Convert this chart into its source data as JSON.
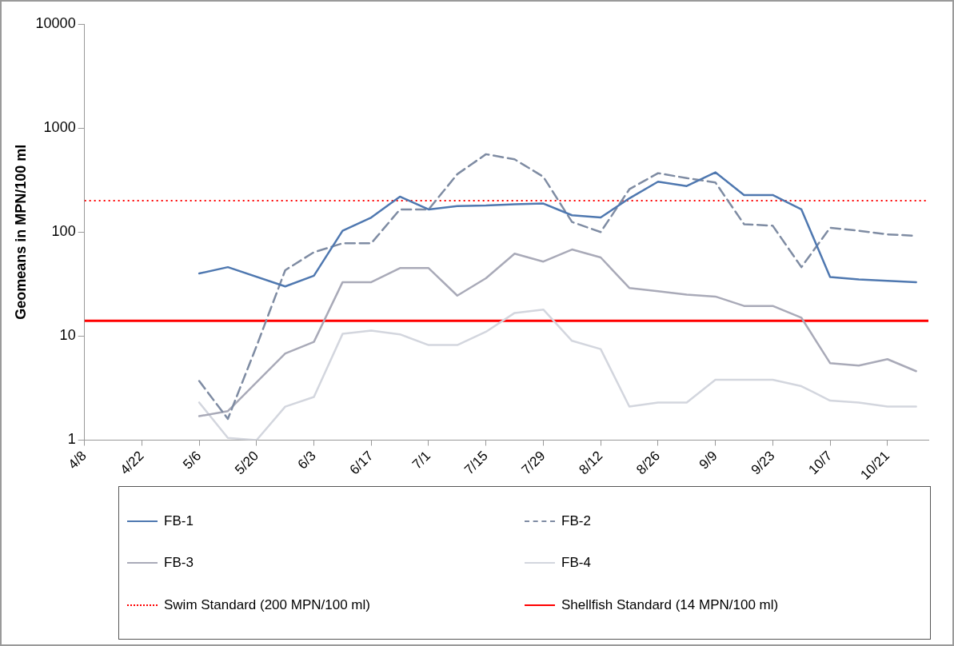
{
  "chart_data": {
    "type": "line",
    "ylabel": "Geomeans in MPN/100 ml",
    "x": [
      "--05-06",
      "--05-13",
      "--05-20",
      "--05-27",
      "--06-03",
      "--06-10",
      "--06-17",
      "--06-24",
      "--07-01",
      "--07-08",
      "--07-15",
      "--07-22",
      "--07-29",
      "--08-05",
      "--08-12",
      "--08-19",
      "--08-26",
      "--09-02",
      "--09-09",
      "--09-16",
      "--09-23",
      "--09-30",
      "--10-07",
      "--10-14",
      "--10-21",
      "--10-28"
    ],
    "series": [
      {
        "name": "FB-1",
        "color": "#4f78b0",
        "line_style": "solid",
        "values": [
          40,
          46,
          null,
          30,
          38,
          103,
          138,
          219,
          165,
          178,
          180,
          185,
          188,
          145,
          138,
          211,
          305,
          277,
          375,
          227,
          227,
          165,
          37,
          35,
          34,
          33
        ]
      },
      {
        "name": "FB-2",
        "color": "#7f8ca3",
        "line_style": "dashed",
        "values": [
          3.7,
          1.6,
          8,
          43,
          64,
          78,
          78,
          165,
          165,
          360,
          560,
          500,
          340,
          125,
          100,
          258,
          368,
          330,
          300,
          119,
          115,
          46,
          110,
          103,
          95,
          92
        ]
      },
      {
        "name": "FB-3",
        "color": "#a9aab8",
        "line_style": "solid",
        "values": [
          1.7,
          1.9,
          3.6,
          6.8,
          8.8,
          33,
          33,
          45,
          45,
          24.5,
          36,
          62,
          52,
          68,
          57,
          29,
          27,
          25,
          24,
          19.5,
          19.5,
          15,
          5.5,
          5.2,
          6,
          4.6
        ]
      },
      {
        "name": "FB-4",
        "color": "#d3d6de",
        "line_style": "solid",
        "values": [
          2.3,
          1.05,
          1,
          2.1,
          2.6,
          10.5,
          11.3,
          10.4,
          8.2,
          8.2,
          11,
          16.7,
          18,
          9,
          7.5,
          2.1,
          2.3,
          2.3,
          3.8,
          3.8,
          3.8,
          3.3,
          2.4,
          2.3,
          2.1,
          2.1
        ]
      }
    ],
    "ref_lines": [
      {
        "axis": "y",
        "value": 200,
        "label": "Swim Standard (200 MPN/100 ml)",
        "color": "#ff0000",
        "line_style": "dotted"
      },
      {
        "axis": "y",
        "value": 14,
        "label": "Shellfish Standard (14 MPN/100 ml)",
        "color": "#ff0000",
        "line_style": "solid"
      }
    ],
    "log": "y",
    "xlim": [
      "--04-08",
      "--10-31"
    ],
    "xticks": [
      {
        "value": "--04-08",
        "label": "4/8"
      },
      {
        "value": "--04-22",
        "label": "4/22"
      },
      {
        "value": "--05-06",
        "label": "5/6"
      },
      {
        "value": "--05-20",
        "label": "5/20"
      },
      {
        "value": "--06-03",
        "label": "6/3"
      },
      {
        "value": "--06-17",
        "label": "6/17"
      },
      {
        "value": "--07-01",
        "label": "7/1"
      },
      {
        "value": "--07-15",
        "label": "7/15"
      },
      {
        "value": "--07-29",
        "label": "7/29"
      },
      {
        "value": "--08-12",
        "label": "8/12"
      },
      {
        "value": "--08-26",
        "label": "8/26"
      },
      {
        "value": "--09-09",
        "label": "9/9"
      },
      {
        "value": "--09-23",
        "label": "9/23"
      },
      {
        "value": "--10-07",
        "label": "10/7"
      },
      {
        "value": "--10-21",
        "label": "10/21"
      }
    ],
    "ylim": [
      1,
      10000
    ],
    "yticks": [
      1,
      10,
      100,
      1000,
      10000
    ],
    "grid": false,
    "legend": "bottom",
    "marker": "none"
  }
}
